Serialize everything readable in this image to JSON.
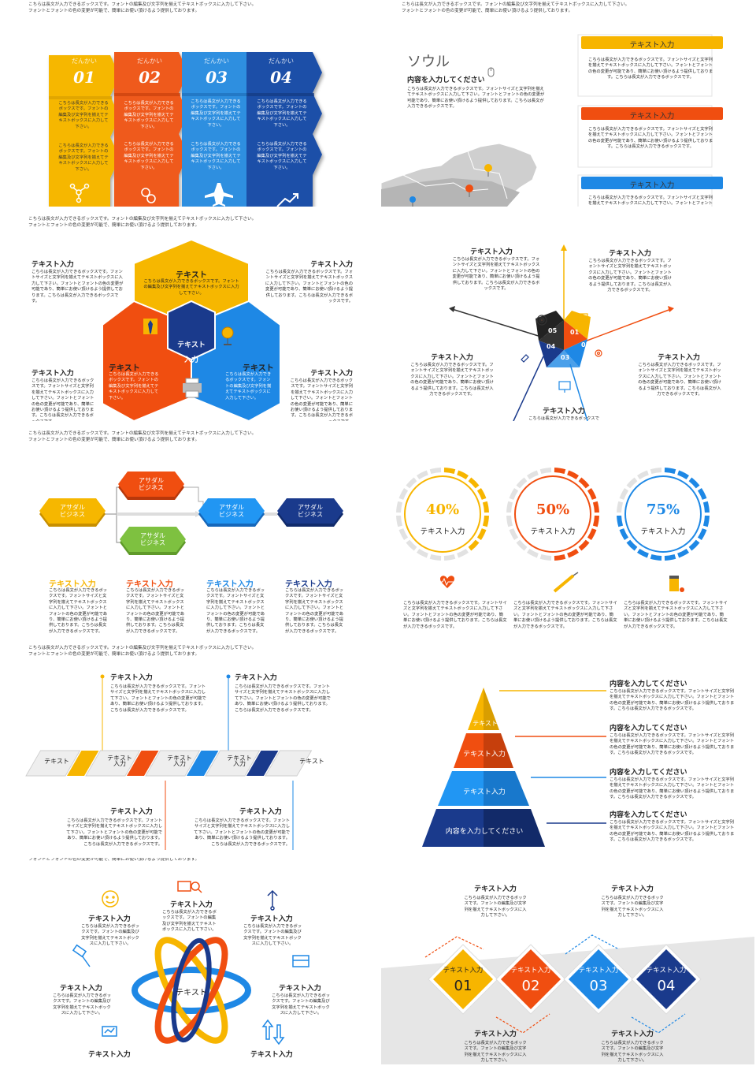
{
  "header_text": "こちらは長文が入力できるボックスです。フォントの編集及び文字列を揃えてテキストボックスに入力して下さい。\nフォントとフォントの色の変更が可能で、簡単にお使い頂けるよう提供しております。",
  "body_short": "こちらは長文が入力できるボックスです。フォントの編集及び文字列を揃えてテキストボックスに入力して下さい。",
  "body_long": "こちらは長文が入力できるボックスです。フォントサイズと文字列を揃えてテキストボックスに入力して下さい。フォントとフォントの色の変更が可能であり、簡単にお使い頂けるよう提供しております。こちらは長文が入力できるボックスです。",
  "text_input": "テキスト入力",
  "text_label": "テキスト",
  "content_input": "内容を入力してください",
  "colors": {
    "yellow": "#f7b500",
    "orange": "#f04e10",
    "blue": "#1e88e5",
    "navy": "#1a3a8c"
  },
  "s1": {
    "stage_word": "だんかい",
    "steps": [
      "01",
      "02",
      "03",
      "04"
    ]
  },
  "s2": {
    "city": "ソウル",
    "subtitle": "内容を入力してください",
    "box_title": "テキスト入力"
  },
  "s3": {
    "center": [
      "テキスト",
      "入力"
    ]
  },
  "s4": {
    "nums": [
      "01",
      "02",
      "03",
      "04",
      "05"
    ]
  },
  "s5": {
    "node": [
      "アサダル",
      "ビジネス"
    ]
  },
  "s6": {
    "percents": [
      "40%",
      "50%",
      "75%"
    ],
    "levels": [
      0.4,
      0.5,
      0.75
    ]
  },
  "s7": {
    "chev": [
      "テキスト",
      "テキスト\n入力",
      "テキスト\n入力",
      "テキスト\n入力",
      "テキスト\n入力",
      "テキスト"
    ]
  },
  "s8": {
    "tiers": [
      "テキスト",
      "テキスト入力",
      "テキスト入力",
      "内容を入力してください"
    ]
  },
  "s9": {
    "center": "テキスト"
  },
  "s10": {
    "nums": [
      "01",
      "02",
      "03",
      "04"
    ]
  },
  "icons": [
    "molecule-icon",
    "link-icon",
    "airplane-icon",
    "chart-up-icon",
    "location-pin-icon",
    "necktie-icon",
    "globe-icon",
    "printer-icon",
    "target-icon",
    "book-icon",
    "gear-icon",
    "monitor-icon",
    "hand-icon",
    "heart-icon",
    "syringe-icon",
    "medicine-icon",
    "smiley-icon",
    "search-icon",
    "usb-icon",
    "paintbrush-icon",
    "box-icon",
    "arrows-icon"
  ]
}
